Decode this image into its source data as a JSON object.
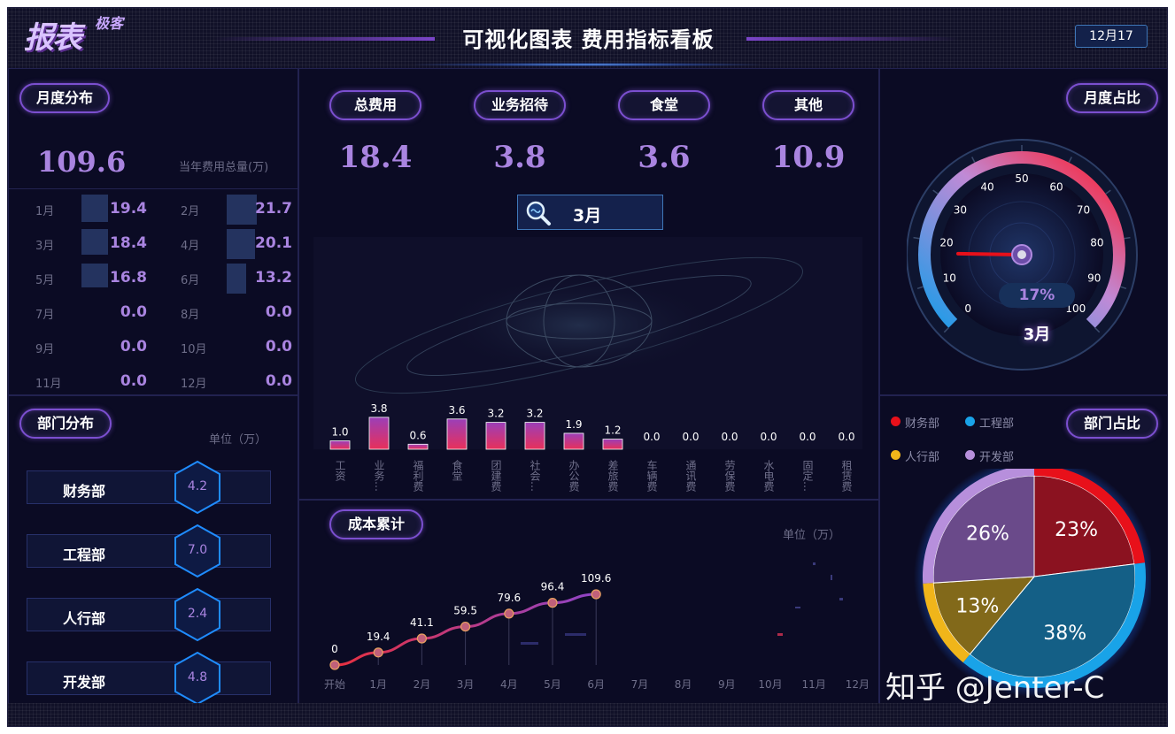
{
  "header": {
    "logo_text": "报表",
    "logo_sub": "极客",
    "title": "可视化图表 费用指标看板",
    "date": "12月17"
  },
  "monthly": {
    "title": "月度分布",
    "total_value": "109.6",
    "total_label": "当年费用总量(万)",
    "rows": [
      {
        "m1": "1月",
        "v1": "19.4",
        "f1": 0.9,
        "m2": "2月",
        "v2": "21.7",
        "f2": 1.0
      },
      {
        "m1": "3月",
        "v1": "18.4",
        "f1": 0.85,
        "m2": "4月",
        "v2": "20.1",
        "f2": 0.93
      },
      {
        "m1": "5月",
        "v1": "16.8",
        "f1": 0.78,
        "m2": "6月",
        "v2": "13.2",
        "f2": 0.61
      },
      {
        "m1": "7月",
        "v1": "0.0",
        "f1": 0,
        "m2": "8月",
        "v2": "0.0",
        "f2": 0
      },
      {
        "m1": "9月",
        "v1": "0.0",
        "f1": 0,
        "m2": "10月",
        "v2": "0.0",
        "f2": 0
      },
      {
        "m1": "11月",
        "v1": "0.0",
        "f1": 0,
        "m2": "12月",
        "v2": "0.0",
        "f2": 0
      }
    ]
  },
  "dept": {
    "title": "部门分布",
    "unit": "单位（万）",
    "items": [
      {
        "name": "财务部",
        "value": "4.2"
      },
      {
        "name": "工程部",
        "value": "7.0"
      },
      {
        "name": "人行部",
        "value": "2.4"
      },
      {
        "name": "开发部",
        "value": "4.8"
      }
    ]
  },
  "kpis": [
    {
      "label": "总费用",
      "value": "18.4"
    },
    {
      "label": "业务招待",
      "value": "3.8"
    },
    {
      "label": "食堂",
      "value": "3.6"
    },
    {
      "label": "其他",
      "value": "10.9"
    }
  ],
  "month_selector": {
    "value": "3月",
    "icon": "search-icon"
  },
  "colors": {
    "accent": "#a984e0",
    "bar_top": "#9b3fb8",
    "bar_bottom": "#e8305a",
    "line_start": "#e8303f",
    "line_end": "#8e44c8"
  },
  "cost_cumulative": {
    "title": "成本累计",
    "unit": "单位（万）"
  },
  "gauge": {
    "title": "月度占比",
    "value_pct": 17,
    "value_label": "17%",
    "month": "3月",
    "ticks": [
      "0",
      "10",
      "20",
      "30",
      "40",
      "50",
      "60",
      "70",
      "80",
      "90",
      "100"
    ]
  },
  "dept_share": {
    "title": "部门占比",
    "legend": [
      {
        "name": "财务部",
        "color": "#e8101a"
      },
      {
        "name": "工程部",
        "color": "#19a3e8"
      },
      {
        "name": "人行部",
        "color": "#f0b51a"
      },
      {
        "name": "开发部",
        "color": "#b78fdc"
      }
    ]
  },
  "watermark": "知乎 @Jenter-C",
  "chart_data": [
    {
      "type": "bar",
      "categories": [
        "工资",
        "业务…",
        "福利费",
        "食堂",
        "团建费",
        "社会…",
        "办公费",
        "差旅费",
        "车辆费",
        "通讯费",
        "劳保费",
        "水电费",
        "固定…",
        "租赁费"
      ],
      "values": [
        1.0,
        3.8,
        0.6,
        3.6,
        3.2,
        3.2,
        1.9,
        1.2,
        0.0,
        0.0,
        0.0,
        0.0,
        0.0,
        0.0
      ],
      "labels": [
        "1.0",
        "3.8",
        "0.6",
        "3.6",
        "3.2",
        "3.2",
        "1.9",
        "1.2",
        "0.0",
        "0.0",
        "0.0",
        "0.0",
        "0.0",
        "0.0"
      ]
    },
    {
      "type": "line",
      "title": "成本累计",
      "ylabel": "单位（万）",
      "categories": [
        "开始",
        "1月",
        "2月",
        "3月",
        "4月",
        "5月",
        "6月",
        "7月",
        "8月",
        "9月",
        "10月",
        "11月",
        "12月"
      ],
      "values": [
        0,
        19.4,
        41.1,
        59.5,
        79.6,
        96.4,
        109.6
      ],
      "labels": [
        "0",
        "19.4",
        "41.1",
        "59.5",
        "79.6",
        "96.4",
        "109.6"
      ]
    },
    {
      "type": "pie",
      "title": "部门占比",
      "series": [
        {
          "name": "财务部",
          "values": [
            23
          ],
          "label": "23%"
        },
        {
          "name": "工程部",
          "values": [
            38
          ],
          "label": "38%"
        },
        {
          "name": "人行部",
          "values": [
            13
          ],
          "label": "13%"
        },
        {
          "name": "开发部",
          "values": [
            26
          ],
          "label": "26%"
        }
      ]
    }
  ]
}
